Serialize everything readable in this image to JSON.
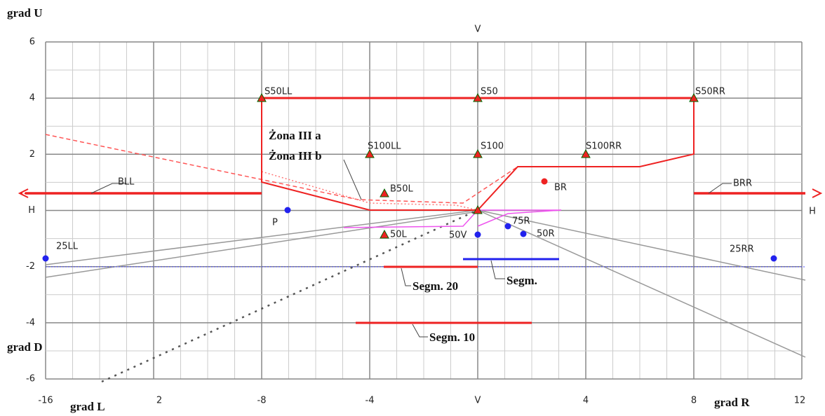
{
  "axis_labels": {
    "top": "V",
    "right": "H",
    "up": "grad U",
    "down": "grad D",
    "left_dir": "grad L",
    "right_dir": "grad R"
  },
  "x_ticks": [
    "-16",
    "2",
    "-8",
    "-4",
    "V",
    "4",
    "8",
    "12"
  ],
  "y_ticks": [
    "6",
    "4",
    "2",
    "H",
    "-2",
    "-4",
    "-6"
  ],
  "points": [
    "S50LL",
    "S50",
    "S50RR",
    "S100LL",
    "S100",
    "S100RR",
    "B50L",
    "50L",
    "BR",
    "P",
    "25LL",
    "50V",
    "75R",
    "50R",
    "25RR"
  ],
  "lines": [
    "BLL",
    "BRR"
  ],
  "zones": [
    "Żona III a",
    "Żona III b"
  ],
  "segments": [
    "Segm. 20",
    "Segm.",
    "Segm. 10"
  ]
}
